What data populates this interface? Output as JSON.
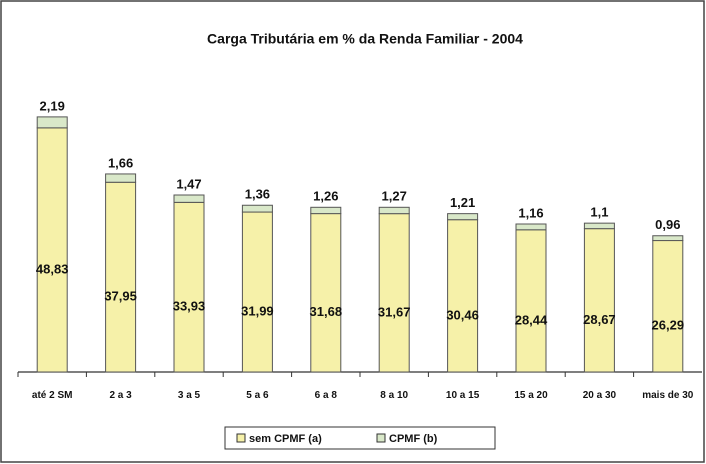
{
  "chart_data": {
    "type": "stacked-bar",
    "title": "Carga Tributária em %  da Renda Familiar - 2004",
    "categories": [
      "até 2 SM",
      "2 a 3",
      "3 a 5",
      "5 a 6",
      "6 a 8",
      "8 a 10",
      "10 a 15",
      "15 a 20",
      "20 a 30",
      "mais de 30"
    ],
    "series": [
      {
        "name": "sem CPMF (a)",
        "color": "#f6f1a9",
        "values": [
          48.83,
          37.95,
          33.93,
          31.99,
          31.68,
          31.67,
          30.46,
          28.44,
          28.67,
          26.29
        ],
        "value_labels": [
          "48,83",
          "37,95",
          "33,93",
          "31,99",
          "31,68",
          "31,67",
          "30,46",
          "28,44",
          "28,67",
          "26,29"
        ]
      },
      {
        "name": "CPMF (b)",
        "color": "#d9e8c9",
        "values": [
          2.19,
          1.66,
          1.47,
          1.36,
          1.26,
          1.27,
          1.21,
          1.16,
          1.1,
          0.96
        ],
        "value_labels": [
          "2,19",
          "1,66",
          "1,47",
          "1,36",
          "1,26",
          "1,27",
          "1,21",
          "1,16",
          "1,1",
          "0,96"
        ]
      }
    ],
    "legend": "bottom"
  }
}
